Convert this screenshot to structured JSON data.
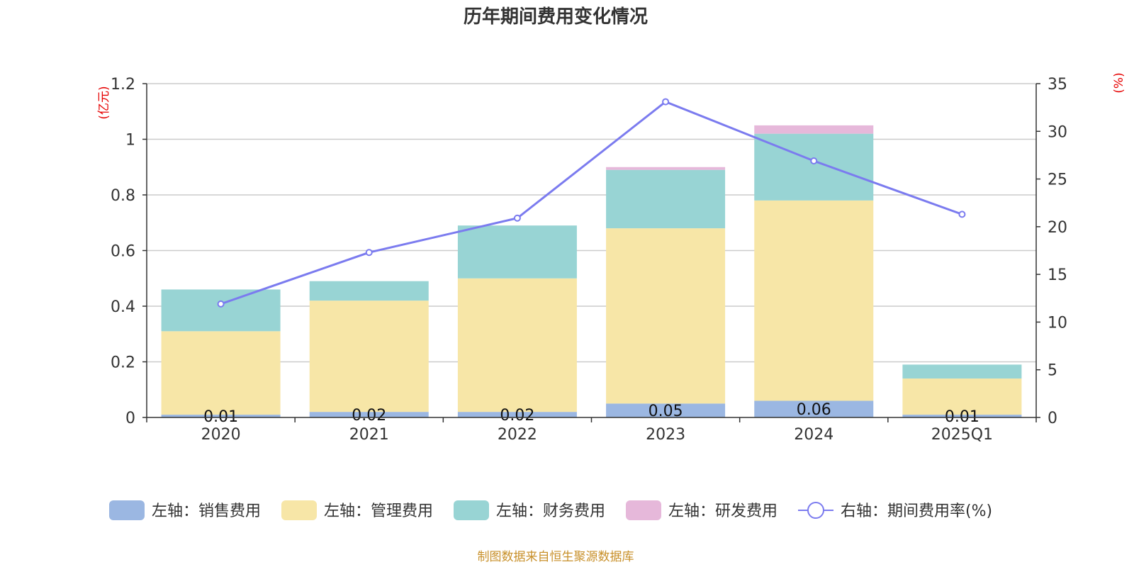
{
  "chart_data": {
    "type": "bar",
    "title": "历年期间费用变化情况",
    "categories": [
      "2020",
      "2021",
      "2022",
      "2023",
      "2024",
      "2025Q1"
    ],
    "left_axis": {
      "unit": "(亿元)",
      "ylim": [
        0,
        1.2
      ],
      "ticks": [
        "0",
        "0.2",
        "0.4",
        "0.6",
        "0.8",
        "1",
        "1.2"
      ],
      "tick_values": [
        0,
        0.2,
        0.4,
        0.6,
        0.8,
        1.0,
        1.2
      ]
    },
    "right_axis": {
      "unit": "(%)",
      "ylim": [
        0,
        35
      ],
      "ticks": [
        "0",
        "5",
        "10",
        "15",
        "20",
        "25",
        "30",
        "35"
      ],
      "tick_values": [
        0,
        5,
        10,
        15,
        20,
        25,
        30,
        35
      ]
    },
    "series": [
      {
        "name": "左轴：销售费用",
        "type": "bar",
        "axis": "left",
        "color": "#9bb7e2",
        "values": [
          0.01,
          0.02,
          0.02,
          0.05,
          0.06,
          0.01
        ],
        "labels": [
          "0.01",
          "0.02",
          "0.02",
          "0.05",
          "0.06",
          "0.01"
        ]
      },
      {
        "name": "左轴：管理费用",
        "type": "bar",
        "axis": "left",
        "color": "#f7e6a7",
        "values": [
          0.3,
          0.4,
          0.48,
          0.63,
          0.72,
          0.13
        ]
      },
      {
        "name": "左轴：财务费用",
        "type": "bar",
        "axis": "left",
        "color": "#98d4d4",
        "values": [
          0.15,
          0.07,
          0.19,
          0.21,
          0.24,
          0.05
        ]
      },
      {
        "name": "左轴：研发费用",
        "type": "bar",
        "axis": "left",
        "color": "#e6b8da",
        "values": [
          0.0,
          0.0,
          0.0,
          0.01,
          0.03,
          0.0
        ]
      },
      {
        "name": "右轴：期间费用率(%)",
        "type": "line",
        "axis": "right",
        "color": "#7b7bef",
        "values": [
          11.9,
          17.3,
          20.9,
          33.1,
          26.9,
          21.3
        ]
      }
    ],
    "legend_position": "bottom",
    "grid": true
  },
  "source_note": "制图数据来自恒生聚源数据库"
}
